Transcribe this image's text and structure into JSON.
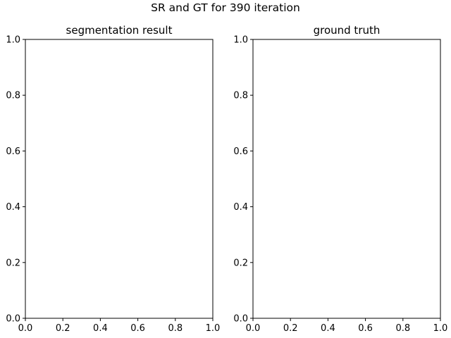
{
  "figure": {
    "suptitle": "SR and GT for 390 iteration"
  },
  "chart_data": [
    {
      "type": "scatter",
      "title": "segmentation result",
      "xlabel": "",
      "ylabel": "",
      "xlim": [
        0,
        1
      ],
      "ylim": [
        0,
        1
      ],
      "xticks": [
        "0.0",
        "0.2",
        "0.4",
        "0.6",
        "0.8",
        "1.0"
      ],
      "yticks": [
        "0.0",
        "0.2",
        "0.4",
        "0.6",
        "0.8",
        "1.0"
      ],
      "grid": false,
      "series": []
    },
    {
      "type": "scatter",
      "title": "ground truth",
      "xlabel": "",
      "ylabel": "",
      "xlim": [
        0,
        1
      ],
      "ylim": [
        0,
        1
      ],
      "xticks": [
        "0.0",
        "0.2",
        "0.4",
        "0.6",
        "0.8",
        "1.0"
      ],
      "yticks": [
        "0.0",
        "0.2",
        "0.4",
        "0.6",
        "0.8",
        "1.0"
      ],
      "grid": false,
      "series": []
    }
  ]
}
